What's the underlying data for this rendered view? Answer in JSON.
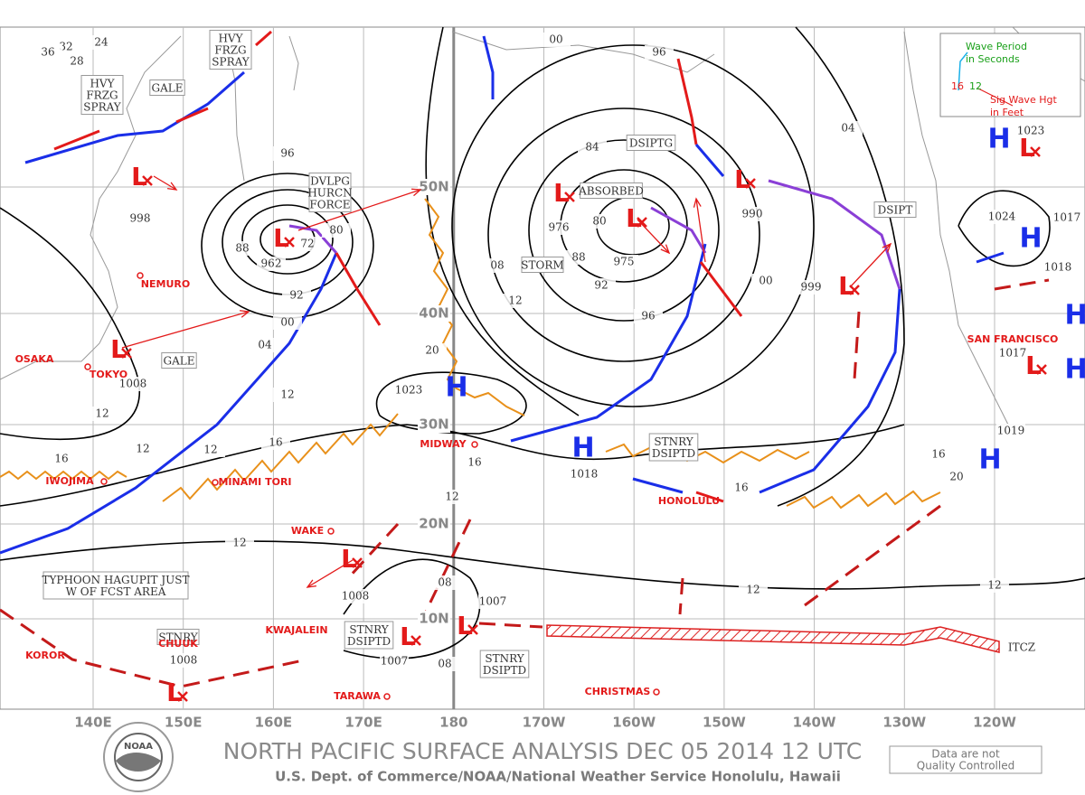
{
  "legend": {
    "period_lines": [
      "Wave Period",
      "in Seconds"
    ],
    "height_lines": [
      "Sig Wave Hgt",
      "in Feet"
    ],
    "period": "12",
    "height": "16"
  },
  "latitudes": [
    "50N",
    "40N",
    "30N",
    "20N",
    "10N"
  ],
  "longitudes": [
    "140E",
    "150E",
    "160E",
    "170E",
    "180",
    "170W",
    "160W",
    "150W",
    "140W",
    "130W",
    "120W"
  ],
  "high_symbol": "H",
  "low_symbol": "L",
  "places": [
    "NEMURO",
    "OSAKA",
    "TOKYO",
    "IWOJIMA",
    "MINAMI TORI",
    "MIDWAY",
    "WAKE",
    "HONOLULU",
    "KWAJALEIN",
    "CHUUK",
    "KOROR",
    "TARAWA",
    "CHRISTMAS",
    "SAN FRANCISCO"
  ],
  "pressure_labels": [
    "998",
    "962",
    "72",
    "80",
    "88",
    "92",
    "96",
    "00",
    "04",
    "1008",
    "12",
    "12",
    "16",
    "12",
    "12",
    "16",
    "1023",
    "20",
    "976",
    "975",
    "80",
    "84",
    "88",
    "92",
    "96",
    "08",
    "12",
    "00",
    "96",
    "990",
    "00",
    "999",
    "1018",
    "16",
    "12",
    "12",
    "1008",
    "08",
    "1007",
    "08",
    "1007",
    "1008",
    "12",
    "12",
    "16",
    "16",
    "20",
    "1017",
    "1019",
    "1024",
    "1017",
    "1018",
    "1023",
    "24",
    "28",
    "32",
    "36",
    "04"
  ],
  "annotations": [
    {
      "lines": [
        "HVY",
        "FRZG",
        "SPRAY"
      ]
    },
    {
      "lines": [
        "HVY",
        "FRZG",
        "SPRAY"
      ]
    },
    {
      "lines": [
        "GALE"
      ]
    },
    {
      "lines": [
        "GALE"
      ]
    },
    {
      "lines": [
        "DVLPG",
        "HURCN",
        "FORCE"
      ]
    },
    {
      "lines": [
        "ABSORBED"
      ]
    },
    {
      "lines": [
        "STORM"
      ]
    },
    {
      "lines": [
        "DSIPTG"
      ]
    },
    {
      "lines": [
        "DSIPT"
      ]
    },
    {
      "lines": [
        "STNRY",
        "DSIPTD"
      ]
    },
    {
      "lines": [
        "TYPHOON HAGUPIT JUST",
        "W OF FCST AREA"
      ]
    },
    {
      "lines": [
        "STNRY"
      ]
    },
    {
      "lines": [
        "STNRY",
        "DSIPTD"
      ]
    },
    {
      "lines": [
        "STNRY",
        "DSIPTD"
      ]
    },
    {
      "lines": [
        "ITCZ"
      ]
    }
  ],
  "footer": {
    "title": "NORTH PACIFIC SURFACE ANALYSIS DEC 05 2014 12 UTC",
    "subtitle": "U.S. Dept. of Commerce/NOAA/National Weather Service Honolulu, Hawaii",
    "note_lines": [
      "Data are not",
      "Quality Controlled"
    ],
    "logo": "NOAA"
  }
}
